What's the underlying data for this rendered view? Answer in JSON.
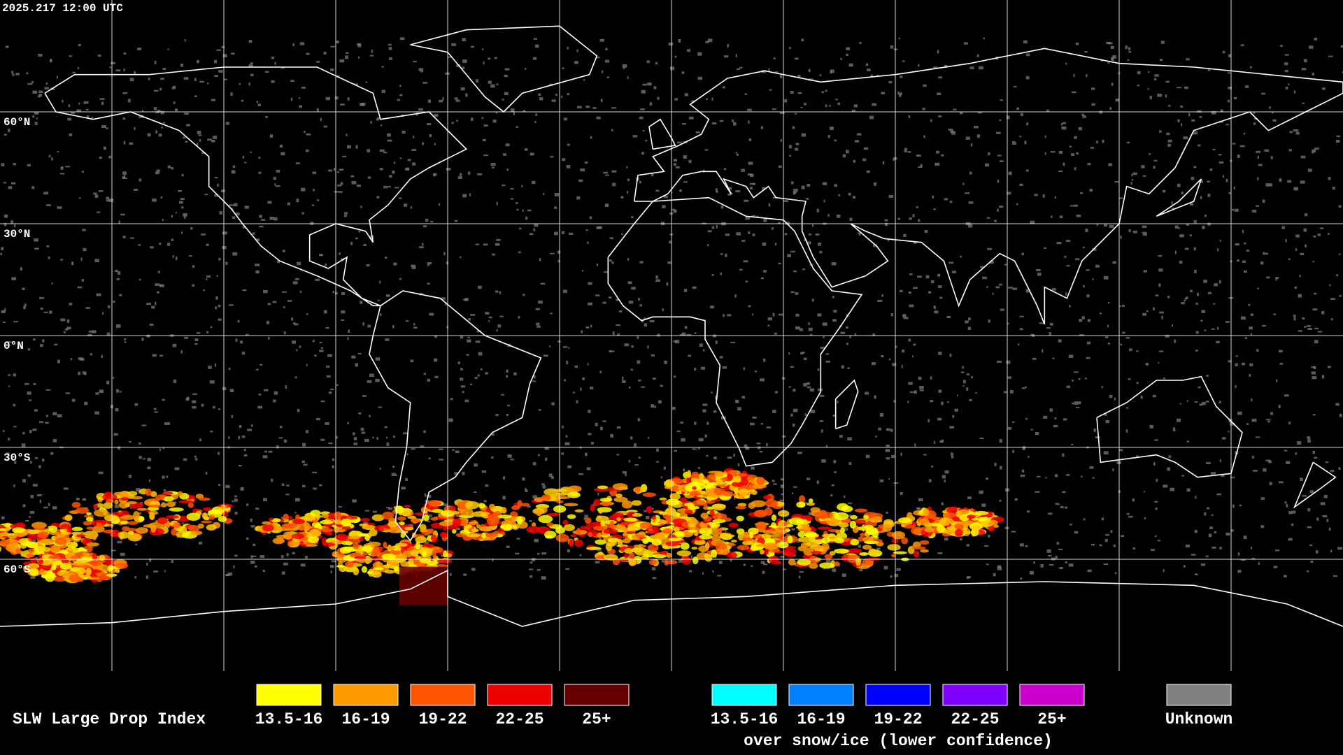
{
  "header": {
    "timestamp": "2025.217 12:00 UTC"
  },
  "map": {
    "lat_labels": [
      "60°N",
      "30°N",
      "0°N",
      "30°S",
      "60°S"
    ]
  },
  "legend": {
    "title": "SLW Large Drop Index",
    "groups": [
      {
        "items": [
          {
            "label": "13.5-16",
            "color": "#ffff00"
          },
          {
            "label": "16-19",
            "color": "#ff9900"
          },
          {
            "label": "19-22",
            "color": "#ff5500"
          },
          {
            "label": "22-25",
            "color": "#ee0000"
          },
          {
            "label": "25+",
            "color": "#660000"
          }
        ]
      },
      {
        "items": [
          {
            "label": "13.5-16",
            "color": "#00ffff"
          },
          {
            "label": "16-19",
            "color": "#0080ff"
          },
          {
            "label": "19-22",
            "color": "#0000ff"
          },
          {
            "label": "22-25",
            "color": "#7f00ff"
          },
          {
            "label": "25+",
            "color": "#cc00cc"
          }
        ],
        "caption": "over snow/ice (lower confidence)"
      },
      {
        "items": [
          {
            "label": "Unknown",
            "color": "#808080"
          }
        ]
      }
    ]
  }
}
